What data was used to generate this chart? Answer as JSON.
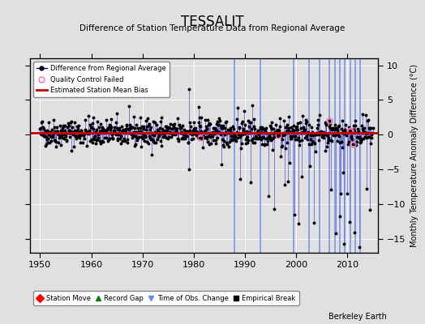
{
  "title": "TESSALIT",
  "subtitle": "Difference of Station Temperature Data from Regional Average",
  "ylabel": "Monthly Temperature Anomaly Difference (°C)",
  "xlabel_bottom": "Berkeley Earth",
  "xlim": [
    1948,
    2016
  ],
  "ylim": [
    -17,
    11
  ],
  "yticks": [
    -15,
    -10,
    -5,
    0,
    5,
    10
  ],
  "xticks": [
    1950,
    1960,
    1970,
    1980,
    1990,
    2000,
    2010
  ],
  "bg_color": "#e0e0e0",
  "plot_bg_color": "#e0e0e0",
  "line_color": "#0000cc",
  "dot_color": "#000000",
  "qc_color": "#ff69b4",
  "bias_color": "#cc0000",
  "bias_value": 0.3,
  "vline_color": "#6688ee",
  "time_of_obs_years": [
    1988.0,
    1993.0
  ],
  "empirical_break_years": [
    1999.5,
    2002.5,
    2004.5,
    2006.5,
    2007.5,
    2008.5,
    2009.5,
    2010.5,
    2011.5,
    2012.5
  ],
  "seed": 42
}
